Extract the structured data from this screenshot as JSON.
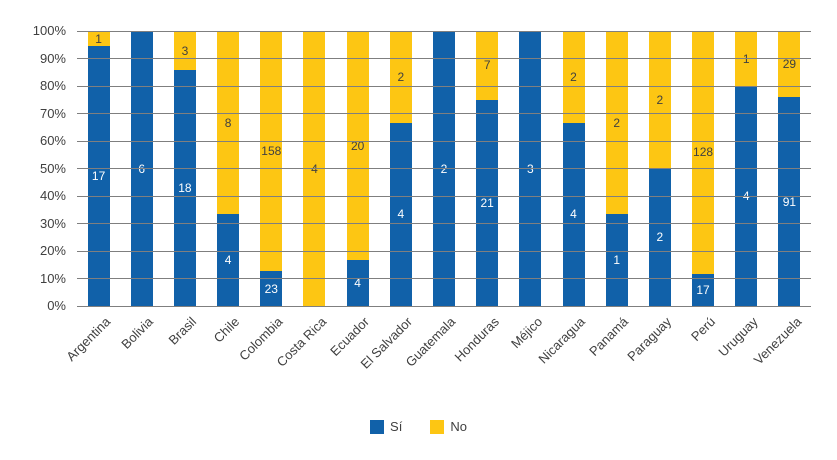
{
  "chart_data": {
    "type": "bar",
    "stacked": true,
    "percent_scale": true,
    "title": "",
    "xlabel": "",
    "ylabel": "",
    "ylim": [
      0,
      100
    ],
    "grid": true,
    "gridlines_over_bars": true,
    "legend_position": "bottom",
    "categories": [
      "Argentina",
      "Bolivia",
      "Brasil",
      "Chile",
      "Colombia",
      "Costa Rica",
      "Ecuador",
      "El Salvador",
      "Guatemala",
      "Honduras",
      "Méjico",
      "Nicaragua",
      "Panamá",
      "Paraguay",
      "Perú",
      "Uruguay",
      "Venezuela"
    ],
    "series": [
      {
        "name": "Sí",
        "color": "#1161A9",
        "values": [
          17,
          6,
          18,
          4,
          23,
          0,
          4,
          4,
          2,
          21,
          3,
          4,
          1,
          2,
          17,
          4,
          91
        ]
      },
      {
        "name": "No",
        "color": "#FDC613",
        "values": [
          1,
          0,
          3,
          8,
          158,
          4,
          20,
          2,
          0,
          7,
          0,
          2,
          2,
          2,
          128,
          1,
          29
        ]
      }
    ],
    "y_ticks": [
      "0%",
      "10%",
      "20%",
      "30%",
      "40%",
      "50%",
      "60%",
      "70%",
      "80%",
      "90%",
      "100%"
    ],
    "colors": {
      "grid": "#7F7F7F",
      "axis": "#7F7F7F",
      "tick_text": "#404040",
      "label_on_si": "#FFFFFF",
      "label_on_no": "#404040"
    }
  }
}
